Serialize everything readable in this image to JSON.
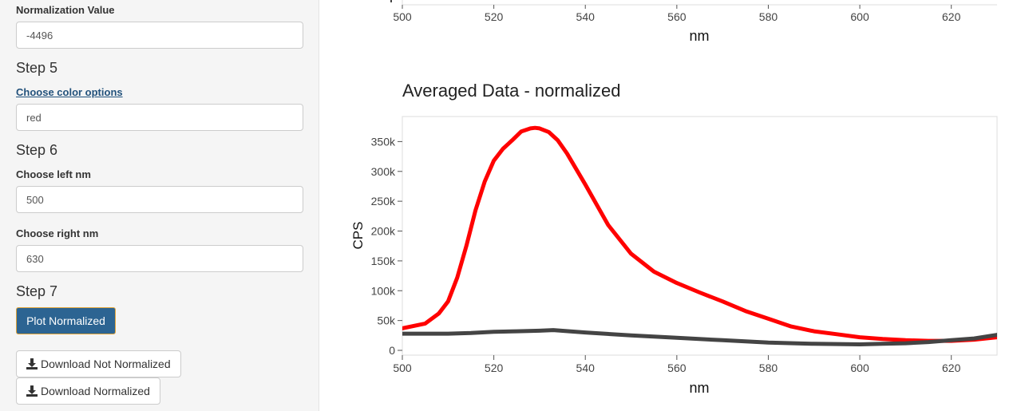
{
  "sidebar": {
    "normalization_label": "Normalization Value",
    "normalization_value": "-4496",
    "step5": "Step 5",
    "color_link": "Choose color options",
    "color_value": "red",
    "step6": "Step 6",
    "left_nm_label": "Choose left nm",
    "left_nm_value": "500",
    "right_nm_label": "Choose right nm",
    "right_nm_value": "630",
    "step7": "Step 7",
    "plot_button": "Plot Normalized",
    "download_not_normalized": "Download Not Normalized",
    "download_normalized": "Download Normalized"
  },
  "top_plot": {
    "x_ticks": [
      "500",
      "520",
      "540",
      "560",
      "580",
      "600",
      "620"
    ],
    "xlabel": "nm"
  },
  "chart_data": {
    "type": "line",
    "title": "Averaged Data - normalized",
    "xlabel": "nm",
    "ylabel": "CPS",
    "xlim": [
      500,
      630
    ],
    "ylim": [
      -8000,
      392000
    ],
    "x_ticks": [
      500,
      520,
      540,
      560,
      580,
      600,
      620
    ],
    "y_ticks": [
      0,
      50000,
      100000,
      150000,
      200000,
      250000,
      300000,
      350000
    ],
    "y_tick_labels": [
      "0",
      "50k",
      "100k",
      "150k",
      "200k",
      "250k",
      "300k",
      "350k"
    ],
    "grid": false,
    "series": [
      {
        "color": "#ff0000",
        "x": [
          500,
          505,
          508,
          510,
          512,
          514,
          516,
          518,
          520,
          522,
          524,
          526,
          528,
          529,
          530,
          532,
          534,
          536,
          540,
          545,
          550,
          555,
          560,
          565,
          570,
          575,
          580,
          585,
          590,
          595,
          600,
          605,
          610,
          615,
          620,
          625,
          630
        ],
        "values": [
          37000,
          45000,
          62000,
          82000,
          122000,
          175000,
          235000,
          283000,
          318000,
          338000,
          352000,
          367000,
          372000,
          373000,
          372000,
          366000,
          352000,
          330000,
          278000,
          210000,
          162000,
          132000,
          113000,
          97000,
          82000,
          66000,
          53000,
          40000,
          32000,
          27000,
          22000,
          19000,
          17000,
          16000,
          16000,
          18000,
          22000
        ]
      },
      {
        "color": "#444444",
        "x": [
          500,
          505,
          510,
          515,
          520,
          525,
          530,
          533,
          540,
          550,
          560,
          570,
          580,
          590,
          600,
          605,
          610,
          615,
          620,
          625,
          630
        ],
        "values": [
          28000,
          28000,
          28000,
          29000,
          31000,
          32000,
          33000,
          34000,
          30000,
          25000,
          21000,
          17000,
          13000,
          11000,
          10000,
          11000,
          12000,
          14000,
          17000,
          20000,
          26000
        ]
      }
    ]
  }
}
